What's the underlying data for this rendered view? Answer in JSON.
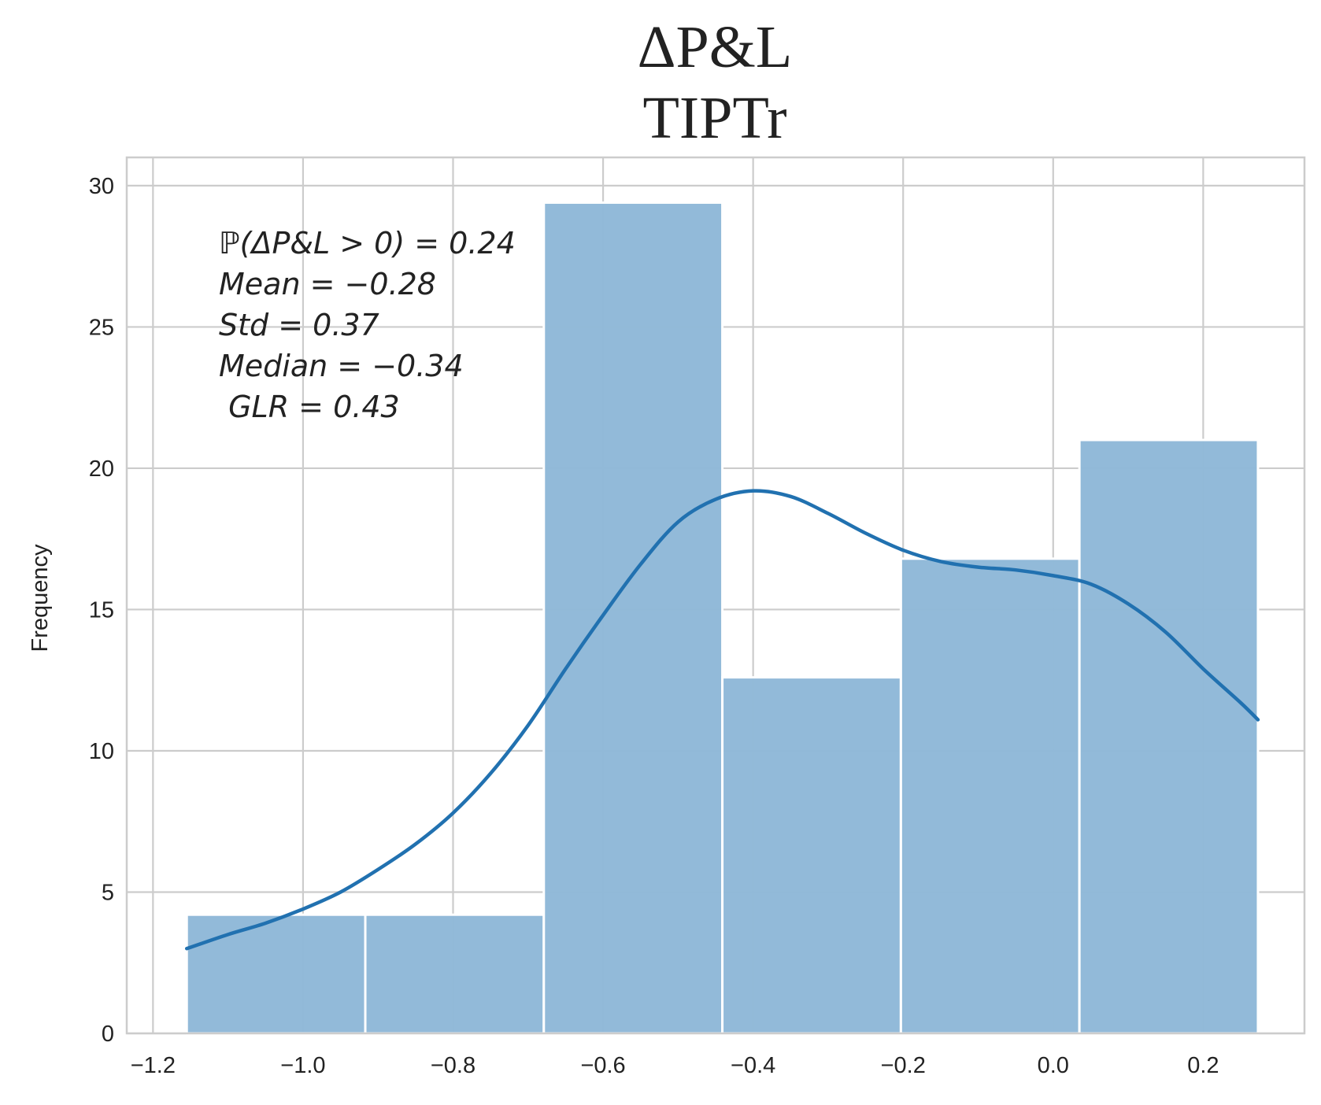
{
  "chart_data": {
    "type": "bar",
    "title": "ΔP&L",
    "subtitle": "TIPTr",
    "xlabel": "",
    "ylabel": "Frequency",
    "xlim": [
      -1.235,
      0.335
    ],
    "ylim": [
      0,
      31
    ],
    "x_ticks": [
      -1.2,
      -1.0,
      -0.8,
      -0.6,
      -0.4,
      -0.2,
      0.0,
      0.2
    ],
    "x_tick_labels": [
      "−1.2",
      "−1.0",
      "−0.8",
      "−0.6",
      "−0.4",
      "−0.2",
      "0.0",
      "0.2"
    ],
    "y_ticks": [
      0,
      5,
      10,
      15,
      20,
      25,
      30
    ],
    "y_tick_labels": [
      "0",
      "5",
      "10",
      "15",
      "20",
      "25",
      "30"
    ],
    "bins": [
      {
        "x0": -1.155,
        "x1": -0.917,
        "value": 4.2
      },
      {
        "x0": -0.917,
        "x1": -0.679,
        "value": 4.2
      },
      {
        "x0": -0.679,
        "x1": -0.441,
        "value": 29.4
      },
      {
        "x0": -0.441,
        "x1": -0.203,
        "value": 12.6
      },
      {
        "x0": -0.203,
        "x1": 0.035,
        "value": 16.8
      },
      {
        "x0": 0.035,
        "x1": 0.273,
        "value": 21.0
      }
    ],
    "kde": {
      "x": [
        -1.155,
        -1.1,
        -1.05,
        -1.0,
        -0.95,
        -0.9,
        -0.85,
        -0.8,
        -0.75,
        -0.7,
        -0.65,
        -0.6,
        -0.55,
        -0.5,
        -0.45,
        -0.4,
        -0.35,
        -0.3,
        -0.25,
        -0.2,
        -0.15,
        -0.1,
        -0.05,
        0.0,
        0.05,
        0.1,
        0.15,
        0.2,
        0.25,
        0.273
      ],
      "y": [
        3.0,
        3.5,
        3.9,
        4.4,
        5.0,
        5.8,
        6.7,
        7.8,
        9.2,
        10.9,
        12.9,
        14.8,
        16.6,
        18.1,
        18.9,
        19.2,
        19.0,
        18.4,
        17.7,
        17.1,
        16.7,
        16.5,
        16.4,
        16.2,
        15.9,
        15.2,
        14.2,
        12.9,
        11.7,
        11.1
      ]
    },
    "grid": true,
    "colors": {
      "bar": "#90b9d8",
      "kde": "#2171b0",
      "grid": "#cccccc",
      "spine": "#cccccc"
    },
    "annotation": [
      "ℙ(ΔP&L > 0) = 0.24",
      "Mean = −0.28",
      "Std = 0.37",
      "Median = −0.34",
      " GLR = 0.43"
    ]
  }
}
